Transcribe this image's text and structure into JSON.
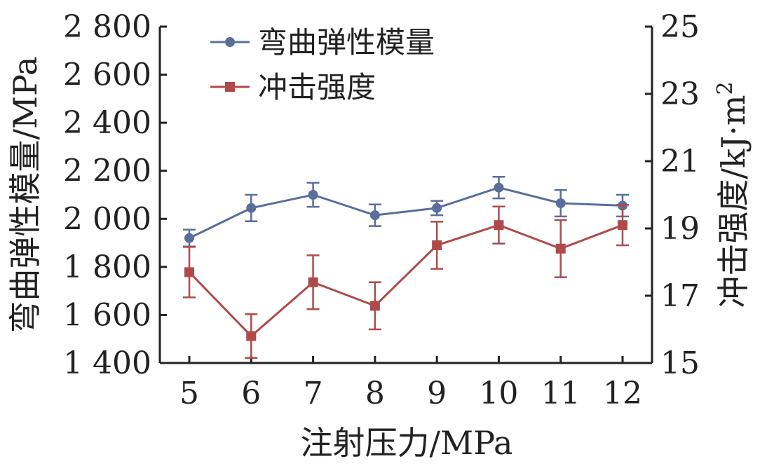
{
  "chart_data": {
    "type": "line",
    "xlabel": "注射压力/MPa",
    "ylabel_left": "弯曲弹性模量/MPa",
    "ylabel_right": "冲击强度/kJ·m",
    "ylabel_right_sup": "2",
    "x": [
      5,
      6,
      7,
      8,
      9,
      10,
      11,
      12
    ],
    "x_tick_labels": [
      "5",
      "6",
      "7",
      "8",
      "9",
      "10",
      "11",
      "12"
    ],
    "y_left_range": [
      1400,
      2800
    ],
    "y_left_ticks": [
      1400,
      1600,
      1800,
      2000,
      2200,
      2400,
      2600,
      2800
    ],
    "y_left_tick_labels": [
      "1 400",
      "1 600",
      "1 800",
      "2 000",
      "2 200",
      "2 400",
      "2 600",
      "2 800"
    ],
    "y_right_range": [
      15,
      25
    ],
    "y_right_ticks": [
      15,
      17,
      19,
      21,
      23,
      25
    ],
    "y_right_tick_labels": [
      "15",
      "17",
      "19",
      "21",
      "23",
      "25"
    ],
    "legend_position": "top-left",
    "series": [
      {
        "name": "弯曲弹性模量",
        "axis": "left",
        "marker": "circle",
        "color": "#5a6e9c",
        "values": [
          1920,
          2045,
          2100,
          2015,
          2045,
          2130,
          2065,
          2055
        ],
        "errors": [
          35,
          55,
          50,
          45,
          30,
          45,
          55,
          45
        ]
      },
      {
        "name": "冲击强度",
        "axis": "right",
        "marker": "square",
        "color": "#b04a4a",
        "values": [
          17.7,
          15.8,
          17.4,
          16.7,
          18.5,
          19.1,
          18.4,
          19.1
        ],
        "errors": [
          0.75,
          0.65,
          0.8,
          0.7,
          0.7,
          0.55,
          0.85,
          0.6
        ]
      }
    ]
  }
}
